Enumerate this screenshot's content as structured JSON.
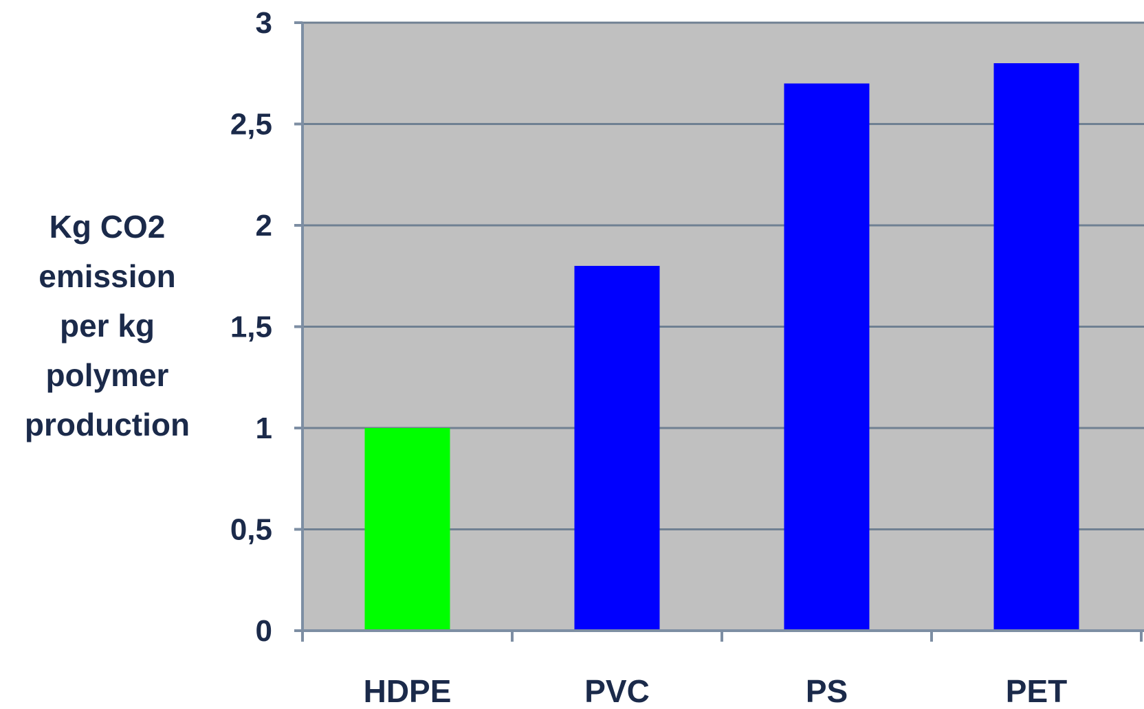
{
  "chart_data": {
    "type": "bar",
    "categories": [
      "HDPE",
      "PVC",
      "PS",
      "PET"
    ],
    "values": [
      1.0,
      1.8,
      2.7,
      2.8
    ],
    "bar_colors": [
      "#00ff00",
      "#0000ff",
      "#0000ff",
      "#0000ff"
    ],
    "ylabel_lines": [
      "Kg CO2",
      "emission",
      "per kg",
      "polymer",
      "production"
    ],
    "ylim": [
      0,
      3
    ],
    "yticks": [
      0,
      0.5,
      1,
      1.5,
      2,
      2.5,
      3
    ],
    "ytick_labels": [
      "0",
      "0,5",
      "1",
      "1,5",
      "2",
      "2,5",
      "3"
    ],
    "grid": true,
    "plot_background": "#c0c0c0",
    "gridline_color": "#6f8092"
  }
}
